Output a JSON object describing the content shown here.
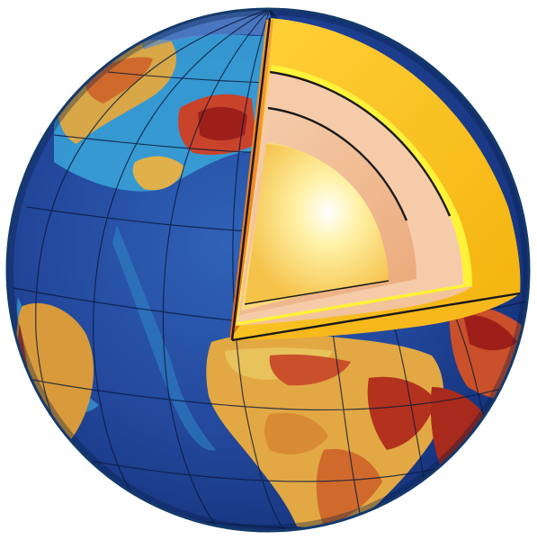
{
  "figure": {
    "subject": "earth-interior-cutaway",
    "layers": [
      {
        "name": "crust",
        "color": "#f7c21a"
      },
      {
        "name": "upper-mantle",
        "color": "#f6c9a6"
      },
      {
        "name": "lower-mantle",
        "color": "#efb382"
      },
      {
        "name": "outer-core",
        "color": "#fbe07a"
      },
      {
        "name": "inner-core",
        "color": "#fff7c6"
      }
    ],
    "colors": {
      "ocean_deep": "#1d3c8c",
      "ocean_mid": "#2f62b8",
      "ocean_shallow": "#3aa6d9",
      "land_low": "#e0b14a",
      "land_mid": "#d87a2c",
      "land_high": "#a2231c",
      "outline": "#143a6b"
    }
  }
}
